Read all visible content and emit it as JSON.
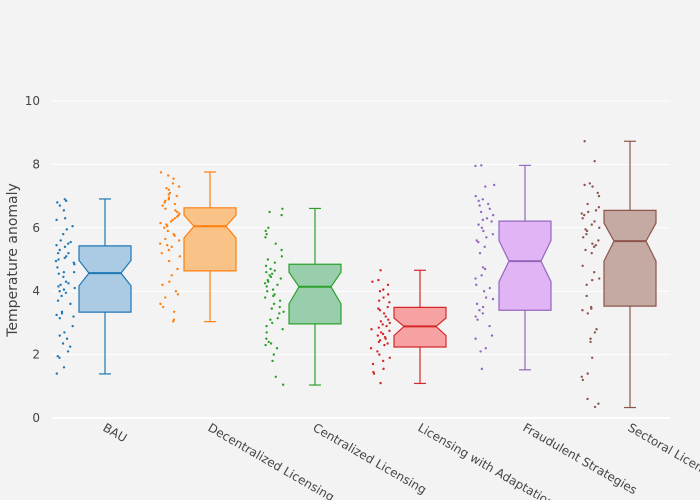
{
  "chart_data": {
    "type": "box",
    "title": "",
    "xlabel": "",
    "ylabel": "Temperature anomaly",
    "ylim": [
      0,
      10.5
    ],
    "yticks": [
      0,
      2,
      4,
      6,
      8,
      10
    ],
    "grid": true,
    "legend": "none",
    "boxes": [
      {
        "name": "BAU",
        "color": "#1f77b4",
        "fill": "#a6c8e3",
        "max": 6.91,
        "q3": 5.43,
        "median": 4.57,
        "q1": 3.34,
        "min": 1.39,
        "notch_low": 4.17,
        "notch_high": 4.97,
        "points": [
          6.9,
          6.85,
          6.8,
          6.7,
          6.55,
          6.3,
          6.25,
          6.05,
          5.95,
          5.8,
          5.6,
          5.55,
          5.5,
          5.45,
          5.4,
          5.3,
          5.2,
          5.2,
          5.1,
          5.05,
          5.0,
          4.95,
          4.9,
          4.85,
          4.75,
          4.6,
          4.6,
          4.55,
          4.45,
          4.3,
          4.25,
          4.2,
          4.15,
          4.1,
          4.05,
          4.0,
          3.95,
          3.85,
          3.7,
          3.6,
          3.35,
          3.3,
          3.25,
          3.2,
          3.15,
          2.9,
          2.7,
          2.6,
          2.5,
          2.35,
          2.25,
          2.1,
          1.95,
          1.9,
          1.6,
          1.4
        ]
      },
      {
        "name": "Decentralized Licensing",
        "color": "#ff7f0e",
        "fill": "#f9bf7f",
        "max": 7.76,
        "q3": 6.63,
        "median": 6.05,
        "q1": 4.64,
        "min": 3.04,
        "notch_low": 5.68,
        "notch_high": 6.4,
        "points": [
          7.75,
          7.65,
          7.55,
          7.4,
          7.3,
          7.25,
          7.2,
          7.1,
          7.05,
          7.0,
          6.95,
          6.9,
          6.85,
          6.8,
          6.75,
          6.7,
          6.6,
          6.55,
          6.5,
          6.45,
          6.4,
          6.35,
          6.3,
          6.25,
          6.2,
          6.15,
          6.1,
          6.05,
          6.0,
          5.9,
          5.8,
          5.75,
          5.65,
          5.6,
          5.5,
          5.45,
          5.4,
          5.3,
          5.2,
          5.1,
          4.95,
          4.7,
          4.5,
          4.3,
          4.2,
          4.0,
          3.9,
          3.8,
          3.6,
          3.5,
          3.35,
          3.1,
          3.05
        ]
      },
      {
        "name": "Centralized Licensing",
        "color": "#2ca02c",
        "fill": "#92cba6",
        "max": 6.61,
        "q3": 4.85,
        "median": 4.14,
        "q1": 2.97,
        "min": 1.04,
        "notch_low": 3.6,
        "notch_high": 4.6,
        "points": [
          6.6,
          6.5,
          6.4,
          6.0,
          5.9,
          5.8,
          5.7,
          5.5,
          5.3,
          5.1,
          5.0,
          4.9,
          4.8,
          4.7,
          4.65,
          4.6,
          4.55,
          4.5,
          4.45,
          4.4,
          4.35,
          4.3,
          4.25,
          4.2,
          4.15,
          4.05,
          4.0,
          3.9,
          3.85,
          3.8,
          3.7,
          3.6,
          3.5,
          3.45,
          3.35,
          3.3,
          3.15,
          3.1,
          3.0,
          2.9,
          2.8,
          2.7,
          2.5,
          2.4,
          2.35,
          2.3,
          2.2,
          2.0,
          1.8,
          1.3,
          1.05
        ]
      },
      {
        "name": "Licensing with Adaptation",
        "color": "#d62728",
        "fill": "#f59d9d",
        "max": 4.66,
        "q3": 3.49,
        "median": 2.89,
        "q1": 2.24,
        "min": 1.09,
        "notch_low": 2.6,
        "notch_high": 3.15,
        "points": [
          4.66,
          4.35,
          4.3,
          4.2,
          4.05,
          4.0,
          3.9,
          3.8,
          3.7,
          3.65,
          3.5,
          3.45,
          3.4,
          3.3,
          3.2,
          3.1,
          3.05,
          3.0,
          2.95,
          2.9,
          2.85,
          2.8,
          2.75,
          2.7,
          2.65,
          2.6,
          2.55,
          2.5,
          2.45,
          2.4,
          2.35,
          2.3,
          2.2,
          2.1,
          2.0,
          1.9,
          1.8,
          1.7,
          1.55,
          1.45,
          1.4,
          1.1
        ]
      },
      {
        "name": "Fraudulent Strategies",
        "color": "#9467bd",
        "fill": "#deb0f4",
        "max": 7.97,
        "q3": 6.21,
        "median": 4.95,
        "q1": 3.4,
        "min": 1.52,
        "notch_low": 4.3,
        "notch_high": 5.6,
        "points": [
          7.97,
          7.95,
          7.35,
          7.3,
          7.0,
          6.9,
          6.85,
          6.75,
          6.7,
          6.6,
          6.5,
          6.4,
          6.3,
          6.25,
          6.2,
          6.1,
          6.0,
          5.9,
          5.8,
          5.7,
          5.6,
          5.55,
          5.4,
          5.2,
          4.75,
          4.7,
          4.5,
          4.4,
          4.2,
          4.1,
          4.0,
          3.8,
          3.75,
          3.6,
          3.5,
          3.4,
          3.3,
          3.2,
          3.1,
          2.9,
          2.6,
          2.5,
          2.2,
          2.1,
          1.55
        ]
      },
      {
        "name": "Sectoral Licensing",
        "color": "#8c564b",
        "fill": "#c2a49e",
        "max": 8.73,
        "q3": 6.55,
        "median": 5.58,
        "q1": 3.53,
        "min": 0.33,
        "notch_low": 4.95,
        "notch_high": 6.15,
        "points": [
          8.73,
          8.1,
          7.4,
          7.35,
          7.3,
          7.1,
          7.0,
          6.75,
          6.65,
          6.55,
          6.5,
          6.45,
          6.4,
          6.3,
          6.2,
          6.1,
          6.0,
          5.95,
          5.9,
          5.8,
          5.7,
          5.6,
          5.5,
          5.45,
          5.4,
          5.3,
          5.2,
          4.8,
          4.6,
          4.4,
          4.35,
          4.2,
          3.85,
          3.5,
          3.45,
          3.4,
          3.3,
          2.8,
          2.7,
          2.5,
          2.4,
          1.9,
          1.4,
          1.3,
          1.2,
          0.6,
          0.45,
          0.35
        ]
      }
    ]
  }
}
